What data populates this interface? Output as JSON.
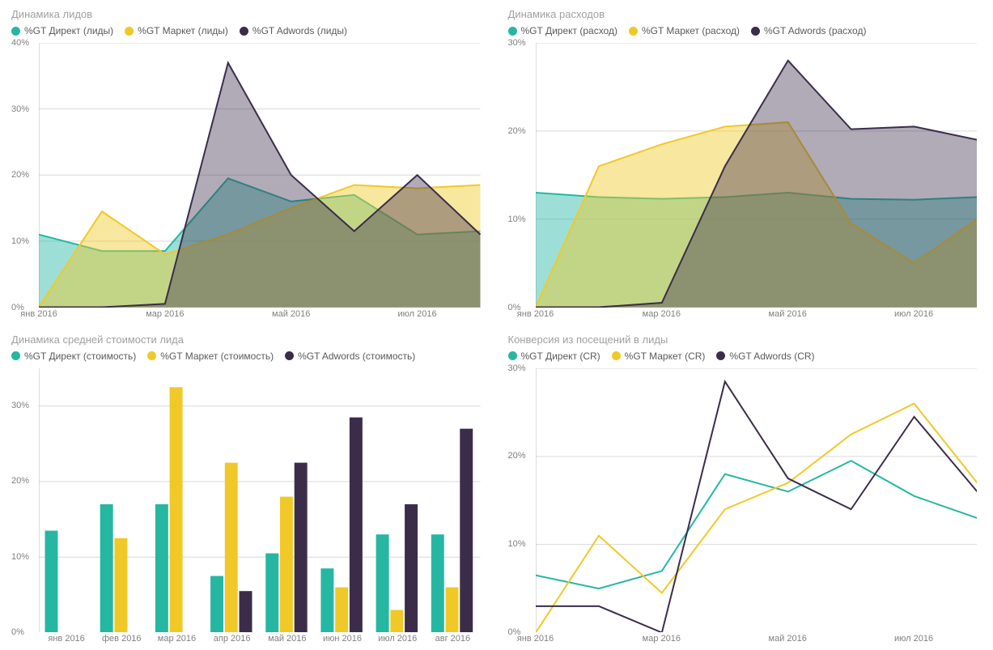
{
  "colors": {
    "direct": "#26b7a3",
    "market": "#f0c928",
    "adwords": "#3b2d4a",
    "direct_fill": "rgba(38,183,163,0.45)",
    "market_fill": "rgba(240,201,40,0.45)",
    "adwords_fill": "rgba(59,45,74,0.40)",
    "grid": "#d9d9d9",
    "axis": "#bbbbbb",
    "title": "#a0a0a0",
    "label": "#808080",
    "legend_text": "#5a5a5a"
  },
  "panels": {
    "leads": {
      "title": "Динамика лидов",
      "type": "area",
      "legend": [
        {
          "color_key": "direct",
          "label": "%GT Директ (лиды)"
        },
        {
          "color_key": "market",
          "label": "%GT Маркет (лиды)"
        },
        {
          "color_key": "adwords",
          "label": "%GT Adwords (лиды)"
        }
      ],
      "x_categories": [
        "янв 2016",
        "фев 2016",
        "мар 2016",
        "апр 2016",
        "май 2016",
        "июн 2016",
        "июл 2016",
        "авг 2016"
      ],
      "x_show_idx": [
        0,
        2,
        4,
        6
      ],
      "ylim": [
        0,
        40
      ],
      "ytick_step": 10,
      "y_suffix": "%",
      "series": [
        {
          "color_key": "direct",
          "fill_key": "direct_fill",
          "values": [
            11,
            8.5,
            8.5,
            19.5,
            16,
            17,
            11,
            11.5
          ]
        },
        {
          "color_key": "market",
          "fill_key": "market_fill",
          "values": [
            0,
            14.5,
            8,
            11,
            15,
            18.5,
            18,
            18.5
          ]
        },
        {
          "color_key": "adwords",
          "fill_key": "adwords_fill",
          "values": [
            0,
            0,
            0.5,
            37,
            20,
            11.5,
            20,
            11
          ]
        }
      ]
    },
    "spend": {
      "title": "Динамика расходов",
      "type": "area",
      "legend": [
        {
          "color_key": "direct",
          "label": "%GT Директ (расход)"
        },
        {
          "color_key": "market",
          "label": "%GT Маркет (расход)"
        },
        {
          "color_key": "adwords",
          "label": "%GT Adwords (расход)"
        }
      ],
      "x_categories": [
        "янв 2016",
        "фев 2016",
        "мар 2016",
        "апр 2016",
        "май 2016",
        "июн 2016",
        "июл 2016",
        "авг 2016"
      ],
      "x_show_idx": [
        0,
        2,
        4,
        6
      ],
      "ylim": [
        0,
        30
      ],
      "ytick_step": 10,
      "y_suffix": "%",
      "series": [
        {
          "color_key": "direct",
          "fill_key": "direct_fill",
          "values": [
            13,
            12.5,
            12.3,
            12.5,
            13,
            12.3,
            12.2,
            12.5
          ]
        },
        {
          "color_key": "market",
          "fill_key": "market_fill",
          "values": [
            0,
            16,
            18.5,
            20.5,
            21,
            9.5,
            5,
            10
          ]
        },
        {
          "color_key": "adwords",
          "fill_key": "adwords_fill",
          "values": [
            0,
            0,
            0.5,
            16,
            28,
            20.2,
            20.5,
            19
          ]
        }
      ]
    },
    "cost": {
      "title": "Динамика средней стоимости лида",
      "type": "bar",
      "legend": [
        {
          "color_key": "direct",
          "label": "%GT Директ (стоимость)"
        },
        {
          "color_key": "market",
          "label": "%GT Маркет (стоимость)"
        },
        {
          "color_key": "adwords",
          "label": "%GT Adwords (стоимость)"
        }
      ],
      "x_categories": [
        "янв 2016",
        "фев 2016",
        "мар 2016",
        "апр 2016",
        "май 2016",
        "июн 2016",
        "июл 2016",
        "авг 2016"
      ],
      "x_show_idx": [
        0,
        1,
        2,
        3,
        4,
        5,
        6,
        7
      ],
      "ylim": [
        0,
        35
      ],
      "yticks": [
        0,
        10,
        20,
        30
      ],
      "y_suffix": "%",
      "series": [
        {
          "color_key": "direct",
          "values": [
            13.5,
            17,
            17,
            7.5,
            10.5,
            8.5,
            13,
            13
          ]
        },
        {
          "color_key": "market",
          "values": [
            0,
            12.5,
            32.5,
            22.5,
            18,
            6,
            3,
            6
          ]
        },
        {
          "color_key": "adwords",
          "values": [
            0,
            0,
            0,
            5.5,
            22.5,
            28.5,
            17,
            27
          ]
        }
      ]
    },
    "cr": {
      "title": "Конверсия из посещений в лиды",
      "type": "line",
      "legend": [
        {
          "color_key": "direct",
          "label": "%GT Директ (CR)"
        },
        {
          "color_key": "market",
          "label": "%GT Маркет (CR)"
        },
        {
          "color_key": "adwords",
          "label": "%GT Adwords (CR)"
        }
      ],
      "x_categories": [
        "янв 2016",
        "фев 2016",
        "мар 2016",
        "апр 2016",
        "май 2016",
        "июн 2016",
        "июл 2016",
        "авг 2016"
      ],
      "x_show_idx": [
        0,
        2,
        4,
        6
      ],
      "ylim": [
        0,
        30
      ],
      "ytick_step": 10,
      "y_suffix": "%",
      "series": [
        {
          "color_key": "direct",
          "values": [
            6.5,
            5,
            7,
            18,
            16,
            19.5,
            15.5,
            13
          ]
        },
        {
          "color_key": "market",
          "values": [
            0,
            11,
            4.5,
            14,
            17,
            22.5,
            26,
            17
          ]
        },
        {
          "color_key": "adwords",
          "values": [
            3,
            3,
            0,
            28.5,
            17.5,
            14,
            24.5,
            16
          ]
        }
      ]
    }
  }
}
